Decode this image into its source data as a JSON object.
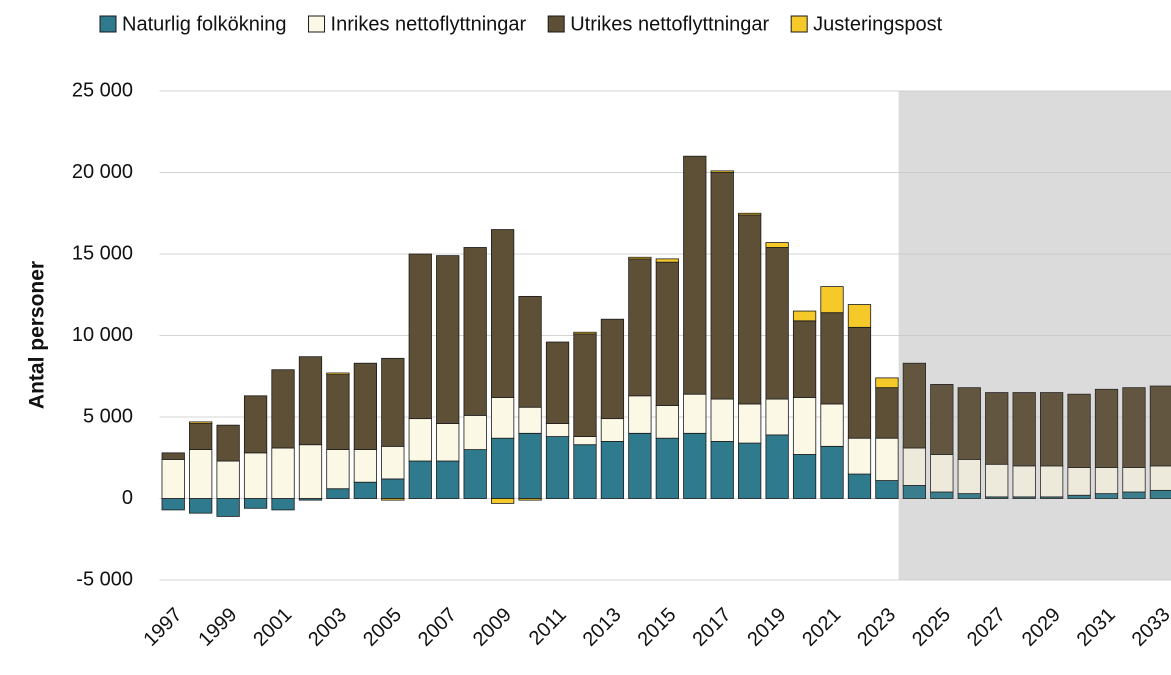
{
  "chart_data": {
    "type": "bar",
    "stacked": true,
    "y_label": "Antal personer",
    "categories": [
      "1997",
      null,
      "1999",
      null,
      "2001",
      null,
      "2003",
      null,
      "2005",
      null,
      "2007",
      null,
      "2009",
      null,
      "2011",
      null,
      "2013",
      null,
      "2015",
      null,
      "2017",
      null,
      "2019",
      null,
      "2021",
      null,
      "2023",
      null,
      "2025",
      null,
      "2027",
      null,
      "2029",
      null,
      "2031",
      null,
      "2033"
    ],
    "series": [
      {
        "name": "Naturlig folkökning",
        "color": "#2f7b8d",
        "values": [
          -700,
          -900,
          -1100,
          -600,
          -700,
          -100,
          600,
          1000,
          1200,
          2300,
          2300,
          3000,
          3700,
          4000,
          3800,
          3300,
          3500,
          4000,
          3700,
          4000,
          3500,
          3400,
          3900,
          2700,
          3200,
          1500,
          1100,
          800,
          400,
          300,
          100,
          100,
          100,
          200,
          300,
          400,
          500
        ]
      },
      {
        "name": "Inrikes nettoflyttningar",
        "color": "#fbf8e6",
        "values": [
          2400,
          3000,
          2300,
          2800,
          3100,
          3300,
          2400,
          2000,
          2000,
          2600,
          2300,
          2100,
          2500,
          1600,
          800,
          500,
          1400,
          2300,
          2000,
          2400,
          2600,
          2400,
          2200,
          3500,
          2600,
          2200,
          2600,
          2300,
          2300,
          2100,
          2000,
          1900,
          1900,
          1700,
          1600,
          1500,
          1500
        ]
      },
      {
        "name": "Utrikes nettoflyttningar",
        "color": "#5e4f37",
        "values": [
          400,
          1600,
          2200,
          3500,
          4800,
          5400,
          4600,
          5300,
          5400,
          10100,
          10300,
          10300,
          10300,
          6800,
          5000,
          6300,
          6100,
          8400,
          8800,
          14600,
          13900,
          11600,
          9300,
          4700,
          5600,
          6800,
          3100,
          5200,
          4300,
          4400,
          4400,
          4500,
          4500,
          4500,
          4800,
          4900,
          4900
        ]
      },
      {
        "name": "Justeringspost",
        "color": "#f5c92a",
        "values": [
          0,
          100,
          0,
          0,
          0,
          0,
          100,
          0,
          -100,
          0,
          0,
          0,
          -300,
          -100,
          0,
          100,
          0,
          100,
          200,
          0,
          100,
          100,
          300,
          600,
          1600,
          1400,
          600,
          0,
          0,
          0,
          0,
          0,
          0,
          0,
          0,
          0,
          0
        ]
      }
    ],
    "ylim": [
      -5000,
      25000
    ],
    "yticks": [
      {
        "value": -5000,
        "label": "-5 000"
      },
      0,
      {
        "value": 5000,
        "label": "5 000"
      },
      {
        "value": 10000,
        "label": "10 000"
      },
      {
        "value": 15000,
        "label": "15 000"
      },
      {
        "value": 20000,
        "label": "20 000"
      },
      {
        "value": 25000,
        "label": "25 000"
      }
    ],
    "grid": true,
    "legend": "top"
  }
}
